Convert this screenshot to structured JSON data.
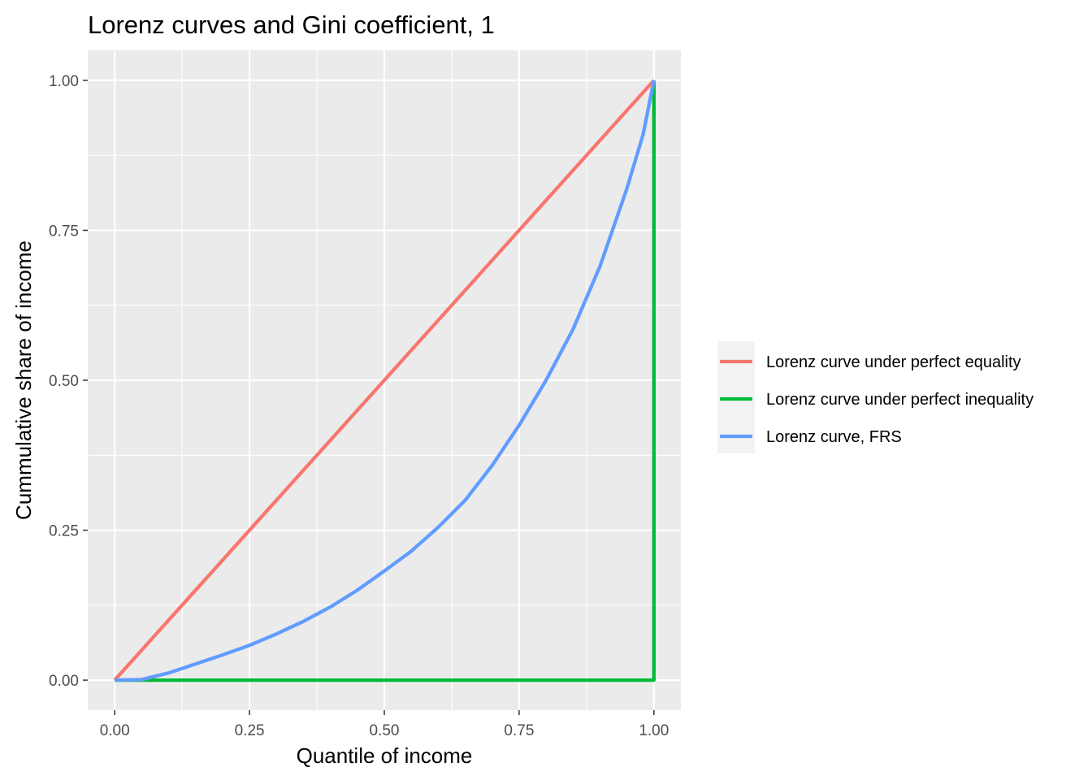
{
  "chart_data": {
    "type": "line",
    "title": "Lorenz curves and Gini coefficient, 1",
    "xlabel": "Quantile of income",
    "ylabel": "Cummulative share of income",
    "xlim": [
      -0.05,
      1.05
    ],
    "ylim": [
      -0.05,
      1.05
    ],
    "x_ticks": [
      0.0,
      0.25,
      0.5,
      0.75,
      1.0
    ],
    "x_tick_labels": [
      "0.00",
      "0.25",
      "0.50",
      "0.75",
      "1.00"
    ],
    "y_ticks": [
      0.0,
      0.25,
      0.5,
      0.75,
      1.0
    ],
    "y_tick_labels": [
      "0.00",
      "0.25",
      "0.50",
      "0.75",
      "1.00"
    ],
    "grid": true,
    "panel_background": "#ebebeb",
    "legend_position": "right",
    "series": [
      {
        "name": "Lorenz curve under perfect equality",
        "color": "#f8766d",
        "x": [
          0.0,
          1.0
        ],
        "y": [
          0.0,
          1.0
        ]
      },
      {
        "name": "Lorenz curve under perfect inequality",
        "color": "#00ba38",
        "x": [
          0.0,
          1.0,
          1.0
        ],
        "y": [
          0.0,
          0.0,
          1.0
        ]
      },
      {
        "name": "Lorenz curve, FRS",
        "color": "#619cff",
        "x": [
          0.0,
          0.05,
          0.1,
          0.15,
          0.2,
          0.25,
          0.3,
          0.35,
          0.4,
          0.45,
          0.5,
          0.55,
          0.6,
          0.65,
          0.7,
          0.75,
          0.8,
          0.85,
          0.9,
          0.95,
          0.98,
          1.0
        ],
        "y": [
          0.0,
          0.001,
          0.012,
          0.027,
          0.042,
          0.058,
          0.077,
          0.098,
          0.122,
          0.15,
          0.182,
          0.215,
          0.255,
          0.3,
          0.358,
          0.425,
          0.5,
          0.585,
          0.69,
          0.82,
          0.91,
          1.0
        ]
      }
    ]
  }
}
